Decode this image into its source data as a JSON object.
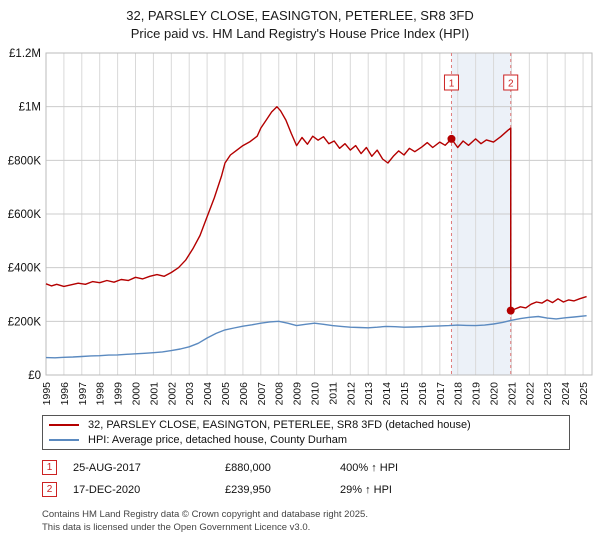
{
  "title": {
    "line1": "32, PARSLEY CLOSE, EASINGTON, PETERLEE, SR8 3FD",
    "line2": "Price paid vs. HM Land Registry's House Price Index (HPI)"
  },
  "chart_data": {
    "type": "line",
    "x_range": [
      1995,
      2025.5
    ],
    "y_range": [
      0,
      1200
    ],
    "y_unit": "GBP thousands",
    "grid": true,
    "y_ticks": [
      {
        "v": 0,
        "label": "£0"
      },
      {
        "v": 200,
        "label": "£200K"
      },
      {
        "v": 400,
        "label": "£400K"
      },
      {
        "v": 600,
        "label": "£600K"
      },
      {
        "v": 800,
        "label": "£800K"
      },
      {
        "v": 1000,
        "label": "£1M"
      },
      {
        "v": 1200,
        "label": "£1.2M"
      }
    ],
    "x_ticks": [
      1995,
      1996,
      1997,
      1998,
      1999,
      2000,
      2001,
      2002,
      2003,
      2004,
      2005,
      2006,
      2007,
      2008,
      2009,
      2010,
      2011,
      2012,
      2013,
      2014,
      2015,
      2016,
      2017,
      2018,
      2019,
      2020,
      2021,
      2022,
      2023,
      2024,
      2025
    ],
    "shaded_region": [
      2017.65,
      2020.96
    ],
    "series": [
      {
        "name": "32, PARSLEY CLOSE, EASINGTON, PETERLEE, SR8 3FD (detached house)",
        "color": "#b40000",
        "points": [
          [
            1995.0,
            340
          ],
          [
            1995.3,
            332
          ],
          [
            1995.6,
            338
          ],
          [
            1996.0,
            330
          ],
          [
            1996.4,
            336
          ],
          [
            1996.8,
            342
          ],
          [
            1997.2,
            338
          ],
          [
            1997.6,
            348
          ],
          [
            1998.0,
            344
          ],
          [
            1998.4,
            352
          ],
          [
            1998.8,
            346
          ],
          [
            1999.2,
            356
          ],
          [
            1999.6,
            352
          ],
          [
            2000.0,
            364
          ],
          [
            2000.4,
            358
          ],
          [
            2000.8,
            368
          ],
          [
            2001.2,
            374
          ],
          [
            2001.6,
            368
          ],
          [
            2002.0,
            382
          ],
          [
            2002.4,
            400
          ],
          [
            2002.8,
            428
          ],
          [
            2003.2,
            470
          ],
          [
            2003.6,
            520
          ],
          [
            2004.0,
            590
          ],
          [
            2004.4,
            660
          ],
          [
            2004.8,
            740
          ],
          [
            2005.0,
            790
          ],
          [
            2005.3,
            820
          ],
          [
            2005.6,
            835
          ],
          [
            2006.0,
            855
          ],
          [
            2006.4,
            870
          ],
          [
            2006.8,
            890
          ],
          [
            2007.0,
            920
          ],
          [
            2007.3,
            950
          ],
          [
            2007.6,
            980
          ],
          [
            2007.9,
            1000
          ],
          [
            2008.1,
            985
          ],
          [
            2008.4,
            950
          ],
          [
            2008.7,
            900
          ],
          [
            2009.0,
            855
          ],
          [
            2009.3,
            885
          ],
          [
            2009.6,
            860
          ],
          [
            2009.9,
            890
          ],
          [
            2010.2,
            875
          ],
          [
            2010.5,
            888
          ],
          [
            2010.8,
            862
          ],
          [
            2011.1,
            872
          ],
          [
            2011.4,
            845
          ],
          [
            2011.7,
            862
          ],
          [
            2012.0,
            838
          ],
          [
            2012.3,
            855
          ],
          [
            2012.6,
            825
          ],
          [
            2012.9,
            848
          ],
          [
            2013.2,
            815
          ],
          [
            2013.5,
            838
          ],
          [
            2013.8,
            805
          ],
          [
            2014.1,
            790
          ],
          [
            2014.4,
            815
          ],
          [
            2014.7,
            835
          ],
          [
            2015.0,
            820
          ],
          [
            2015.3,
            845
          ],
          [
            2015.6,
            832
          ],
          [
            2016.0,
            850
          ],
          [
            2016.3,
            866
          ],
          [
            2016.6,
            848
          ],
          [
            2017.0,
            868
          ],
          [
            2017.3,
            856
          ],
          [
            2017.65,
            880
          ],
          [
            2018.0,
            848
          ],
          [
            2018.3,
            872
          ],
          [
            2018.6,
            856
          ],
          [
            2019.0,
            880
          ],
          [
            2019.3,
            862
          ],
          [
            2019.6,
            876
          ],
          [
            2020.0,
            868
          ],
          [
            2020.4,
            888
          ],
          [
            2020.8,
            912
          ],
          [
            2020.96,
            920
          ],
          [
            2020.96,
            239.95
          ],
          [
            2021.2,
            246
          ],
          [
            2021.5,
            254
          ],
          [
            2021.8,
            250
          ],
          [
            2022.1,
            264
          ],
          [
            2022.4,
            272
          ],
          [
            2022.7,
            268
          ],
          [
            2023.0,
            280
          ],
          [
            2023.3,
            270
          ],
          [
            2023.6,
            284
          ],
          [
            2023.9,
            272
          ],
          [
            2024.2,
            280
          ],
          [
            2024.5,
            276
          ],
          [
            2024.8,
            284
          ],
          [
            2025.2,
            292
          ]
        ]
      },
      {
        "name": "HPI: Average price, detached house, County Durham",
        "color": "#5b8ac0",
        "points": [
          [
            1995.0,
            65
          ],
          [
            1995.5,
            64
          ],
          [
            1996.0,
            66
          ],
          [
            1996.5,
            67
          ],
          [
            1997.0,
            69
          ],
          [
            1997.5,
            71
          ],
          [
            1998.0,
            72
          ],
          [
            1998.5,
            74
          ],
          [
            1999.0,
            75
          ],
          [
            1999.5,
            77
          ],
          [
            2000.0,
            79
          ],
          [
            2000.5,
            81
          ],
          [
            2001.0,
            83
          ],
          [
            2001.5,
            86
          ],
          [
            2002.0,
            91
          ],
          [
            2002.5,
            97
          ],
          [
            2003.0,
            105
          ],
          [
            2003.5,
            118
          ],
          [
            2004.0,
            138
          ],
          [
            2004.5,
            155
          ],
          [
            2005.0,
            168
          ],
          [
            2005.5,
            175
          ],
          [
            2006.0,
            182
          ],
          [
            2006.5,
            187
          ],
          [
            2007.0,
            193
          ],
          [
            2007.5,
            198
          ],
          [
            2008.0,
            200
          ],
          [
            2008.5,
            193
          ],
          [
            2009.0,
            184
          ],
          [
            2009.5,
            189
          ],
          [
            2010.0,
            193
          ],
          [
            2010.5,
            189
          ],
          [
            2011.0,
            184
          ],
          [
            2011.5,
            181
          ],
          [
            2012.0,
            178
          ],
          [
            2012.5,
            177
          ],
          [
            2013.0,
            176
          ],
          [
            2013.5,
            178
          ],
          [
            2014.0,
            181
          ],
          [
            2014.5,
            180
          ],
          [
            2015.0,
            178
          ],
          [
            2015.5,
            179
          ],
          [
            2016.0,
            180
          ],
          [
            2016.5,
            182
          ],
          [
            2017.0,
            183
          ],
          [
            2017.5,
            184
          ],
          [
            2018.0,
            186
          ],
          [
            2018.5,
            185
          ],
          [
            2019.0,
            184
          ],
          [
            2019.5,
            186
          ],
          [
            2020.0,
            190
          ],
          [
            2020.5,
            196
          ],
          [
            2021.0,
            204
          ],
          [
            2021.5,
            210
          ],
          [
            2022.0,
            215
          ],
          [
            2022.5,
            218
          ],
          [
            2023.0,
            212
          ],
          [
            2023.5,
            209
          ],
          [
            2024.0,
            213
          ],
          [
            2024.5,
            216
          ],
          [
            2025.2,
            221
          ]
        ]
      }
    ],
    "sales": [
      {
        "n": "1",
        "x": 2017.65,
        "y": 880,
        "date": "25-AUG-2017",
        "price": "£880,000",
        "hpi": "400% ↑ HPI"
      },
      {
        "n": "2",
        "x": 2020.96,
        "y": 239.95,
        "date": "17-DEC-2020",
        "price": "£239,950",
        "hpi": "29% ↑ HPI"
      }
    ]
  },
  "legend": [
    {
      "label": "32, PARSLEY CLOSE, EASINGTON, PETERLEE, SR8 3FD (detached house)",
      "color": "#b40000"
    },
    {
      "label": "HPI: Average price, detached house, County Durham",
      "color": "#5b8ac0"
    }
  ],
  "transactions": [
    {
      "num": "1",
      "date": "25-AUG-2017",
      "price": "£880,000",
      "hpi_change": "400% ↑ HPI"
    },
    {
      "num": "2",
      "date": "17-DEC-2020",
      "price": "£239,950",
      "hpi_change": "29% ↑ HPI"
    }
  ],
  "footer": {
    "line1": "Contains HM Land Registry data © Crown copyright and database right 2025.",
    "line2": "This data is licensed under the Open Government Licence v3.0."
  },
  "colors": {
    "property_line": "#b40000",
    "hpi_line": "#5b8ac0",
    "sale_marker_box": "#cc2222",
    "shading": "#dce5f3",
    "grid": "#d9d9d9"
  }
}
